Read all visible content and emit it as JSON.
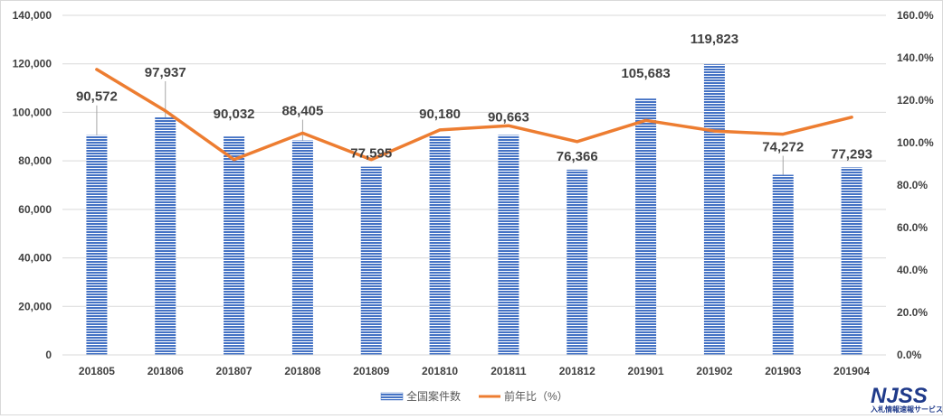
{
  "chart_data": {
    "type": "bar",
    "categories": [
      "201805",
      "201806",
      "201807",
      "201808",
      "201809",
      "201810",
      "201811",
      "201812",
      "201901",
      "201902",
      "201903",
      "201904"
    ],
    "series": [
      {
        "name": "全国案件数",
        "type": "bar",
        "axis": "left",
        "color": "#4472c4",
        "values": [
          90572,
          97937,
          90032,
          88405,
          77595,
          90180,
          90663,
          76366,
          105683,
          119823,
          74272,
          77293
        ],
        "labels": [
          "90,572",
          "97,937",
          "90,032",
          "88,405",
          "77,595",
          "90,180",
          "90,663",
          "76,366",
          "105,683",
          "119,823",
          "74,272",
          "77,293"
        ]
      },
      {
        "name": "前年比（%）",
        "type": "line",
        "axis": "right",
        "color": "#ed7d31",
        "values": [
          134.5,
          115.0,
          92.0,
          104.5,
          92.0,
          106.0,
          108.0,
          100.5,
          110.5,
          105.5,
          104.0,
          112.0
        ]
      }
    ],
    "y_left": {
      "min": 0,
      "max": 140000,
      "ticks": [
        0,
        20000,
        40000,
        60000,
        80000,
        100000,
        120000,
        140000
      ],
      "tick_labels": [
        "0",
        "20,000",
        "40,000",
        "60,000",
        "80,000",
        "100,000",
        "120,000",
        "140,000"
      ]
    },
    "y_right": {
      "min": 0,
      "max": 160,
      "ticks": [
        0,
        20,
        40,
        60,
        80,
        100,
        120,
        140,
        160
      ],
      "tick_labels": [
        "0.0%",
        "20.0%",
        "40.0%",
        "60.0%",
        "80.0%",
        "100.0%",
        "120.0%",
        "140.0%",
        "160.0%"
      ]
    },
    "grid": true,
    "legend": "bottom-center",
    "title": "",
    "xlabel": "",
    "ylabel": ""
  },
  "logo": {
    "name": "NJSS",
    "tagline": "入札情報速報サービス"
  }
}
